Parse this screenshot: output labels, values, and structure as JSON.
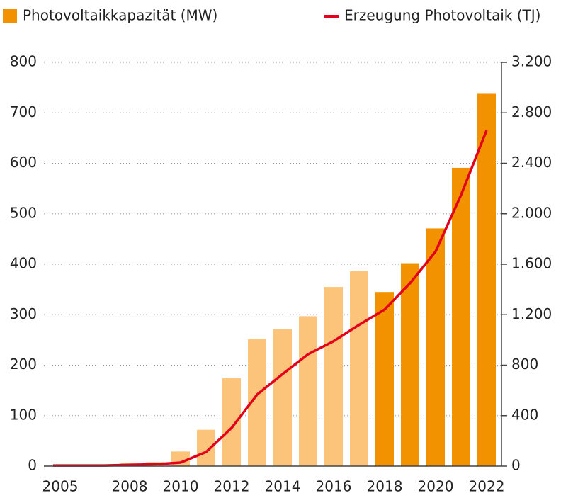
{
  "chart_data": {
    "type": "bar_line",
    "categories": [
      "2005",
      null,
      null,
      "2008",
      null,
      "2010",
      null,
      "2012",
      null,
      "2014",
      null,
      "2016",
      null,
      "2018",
      null,
      "2020",
      null,
      "2022"
    ],
    "series": [
      {
        "name": "Photovoltaikkapazität (MW)",
        "type": "bar",
        "color": "#f39200",
        "colors": [
          "#fbc47a",
          "#fbc47a",
          "#fbc47a",
          "#fbc47a",
          "#fbc47a",
          "#fbc47a",
          "#fbc47a",
          "#fbc47a",
          "#fbc47a",
          "#fbc47a",
          "#fbc47a",
          "#fbc47a",
          "#fbc47a",
          "#f39200",
          "#f39200",
          "#f39200",
          "#f39200",
          "#f39200"
        ],
        "values": [
          1,
          1,
          2,
          6,
          8,
          29,
          72,
          174,
          252,
          272,
          297,
          355,
          386,
          345,
          402,
          471,
          591,
          739
        ]
      },
      {
        "name": "Erzeugung Photovoltaik (TJ)",
        "type": "line",
        "axis": "y2",
        "color": "#e3001b",
        "values": [
          5,
          5,
          5,
          10,
          15,
          28,
          112,
          303,
          567,
          730,
          887,
          990,
          1120,
          1241,
          1450,
          1701,
          2150,
          2661
        ]
      }
    ],
    "ylim": [
      0,
      800
    ],
    "yticks": [
      0,
      100,
      200,
      300,
      400,
      500,
      600,
      700,
      800
    ],
    "y2lim": [
      0,
      3200
    ],
    "y2ticks": [
      0,
      400,
      800,
      {
        "value": 1200,
        "label": "1.200"
      },
      {
        "value": 1600,
        "label": "1.600"
      },
      {
        "value": 2000,
        "label": "2.000"
      },
      {
        "value": 2400,
        "label": "2.400"
      },
      {
        "value": 2800,
        "label": "2.800"
      },
      {
        "value": 3200,
        "label": "3.200"
      }
    ],
    "grid": true
  }
}
